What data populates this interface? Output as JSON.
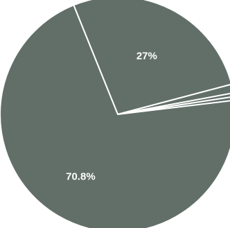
{
  "chart_data": {
    "type": "pie",
    "values": [
      27,
      1.2,
      0.5,
      0.5,
      70.8
    ],
    "labels": [
      "27%",
      "",
      "",
      "",
      "70.8%"
    ],
    "colors": [
      "#626f69",
      "#626f69",
      "#626f69",
      "#626f69",
      "#626f69"
    ],
    "edge_color": "#ffffff",
    "start_angle_deg": 112,
    "direction": "clockwise",
    "legend": "none",
    "title": ""
  }
}
